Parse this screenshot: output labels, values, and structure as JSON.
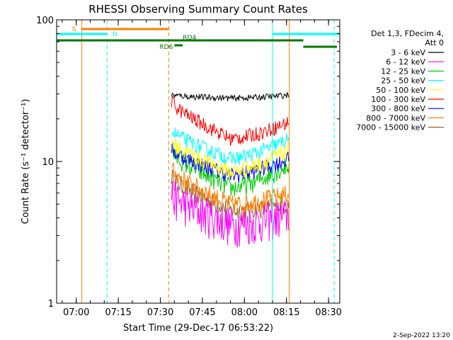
{
  "chart_data": {
    "type": "line",
    "title": "RHESSI Observing Summary Count Rates",
    "xlabel": "Start Time (29-Dec-17 06:53:22)",
    "ylabel": "Count Rate (s⁻¹ detector⁻¹)",
    "y_scale": "log",
    "ylim": [
      1,
      100
    ],
    "y_ticks": [
      {
        "value": 1,
        "label": "1"
      },
      {
        "value": 10,
        "label": "10"
      },
      {
        "value": 100,
        "label": "100"
      }
    ],
    "xlim": [
      "06:53",
      "08:34"
    ],
    "x_ticks": [
      "07:00",
      "07:15",
      "07:30",
      "07:45",
      "08:00",
      "08:15",
      "08:30"
    ],
    "legend": {
      "placement": "right",
      "header": [
        "Det 1,3, FDecim 4,",
        "Att 0"
      ],
      "entries": [
        {
          "name": "3 - 6 keV",
          "color": "#000000"
        },
        {
          "name": "6 - 12 keV",
          "color": "#ff00ff"
        },
        {
          "name": "12 - 25 keV",
          "color": "#00cc00"
        },
        {
          "name": "25 - 50 keV",
          "color": "#00ffff"
        },
        {
          "name": "50 - 100 keV",
          "color": "#ffff00"
        },
        {
          "name": "100 - 300 keV",
          "color": "#ff0000"
        },
        {
          "name": "300 - 800 keV",
          "color": "#0000ff"
        },
        {
          "name": "800 - 7000 keV",
          "color": "#ff8000"
        },
        {
          "name": "7000 - 15000 keV",
          "color": "#996633"
        }
      ]
    },
    "data_interval": {
      "start": "07:34",
      "end": "08:16"
    },
    "series": [
      {
        "name": "3 - 6 keV",
        "start": 29.5,
        "dip": 28.0,
        "end": 29.5
      },
      {
        "name": "6 - 12 keV",
        "start": 6.0,
        "dip": 3.6,
        "end": 4.2
      },
      {
        "name": "12 - 25 keV",
        "start": 12.0,
        "dip": 6.5,
        "end": 9.5
      },
      {
        "name": "25 - 50 keV",
        "start": 17.0,
        "dip": 10.5,
        "end": 14.5
      },
      {
        "name": "50 - 100 keV",
        "start": 14.0,
        "dip": 8.5,
        "end": 12.0
      },
      {
        "name": "100 - 300 keV",
        "start": 27.0,
        "dip": 14.5,
        "end": 19.0
      },
      {
        "name": "300 - 800 keV",
        "start": 12.5,
        "dip": 8.0,
        "end": 10.5
      },
      {
        "name": "800 - 7000 keV",
        "start": 9.0,
        "dip": 5.0,
        "end": 6.0
      },
      {
        "name": "7000 - 15000 keV",
        "start": 8.0,
        "dip": 4.5,
        "end": 5.0
      }
    ],
    "spacecraft_bars": [
      {
        "label": "S",
        "color": "#ff8000",
        "start": "07:02",
        "end": "07:33"
      },
      {
        "label": "N",
        "color": "#00ffff",
        "start": "06:53",
        "end": "07:11"
      },
      {
        "label": "N",
        "color": "#00ffff",
        "start": "08:10",
        "end": "08:34"
      },
      {
        "label": "",
        "color": "#007700",
        "start": "06:53",
        "end": "08:21"
      },
      {
        "label": "RD4",
        "color": "#007700",
        "start": "07:36",
        "end": "08:21"
      },
      {
        "label": "RD6",
        "color": "#007700",
        "start": "07:35",
        "end": "07:38"
      },
      {
        "label": "",
        "color": "#007700",
        "start": "08:21",
        "end": "08:33"
      }
    ],
    "vertical_markers": [
      {
        "time": "07:02",
        "color": "#ff8000",
        "style": "solid"
      },
      {
        "time": "07:11",
        "color": "#00ffff",
        "style": "dashed"
      },
      {
        "time": "07:33",
        "color": "#ff8000",
        "style": "dashed"
      },
      {
        "time": "08:10",
        "color": "#00ffff",
        "style": "solid"
      },
      {
        "time": "08:16",
        "color": "#ff8000",
        "style": "solid"
      },
      {
        "time": "08:32",
        "color": "#00ffff",
        "style": "dashed"
      }
    ]
  },
  "footer": {
    "timestamp": "2-Sep-2022 13:20"
  }
}
